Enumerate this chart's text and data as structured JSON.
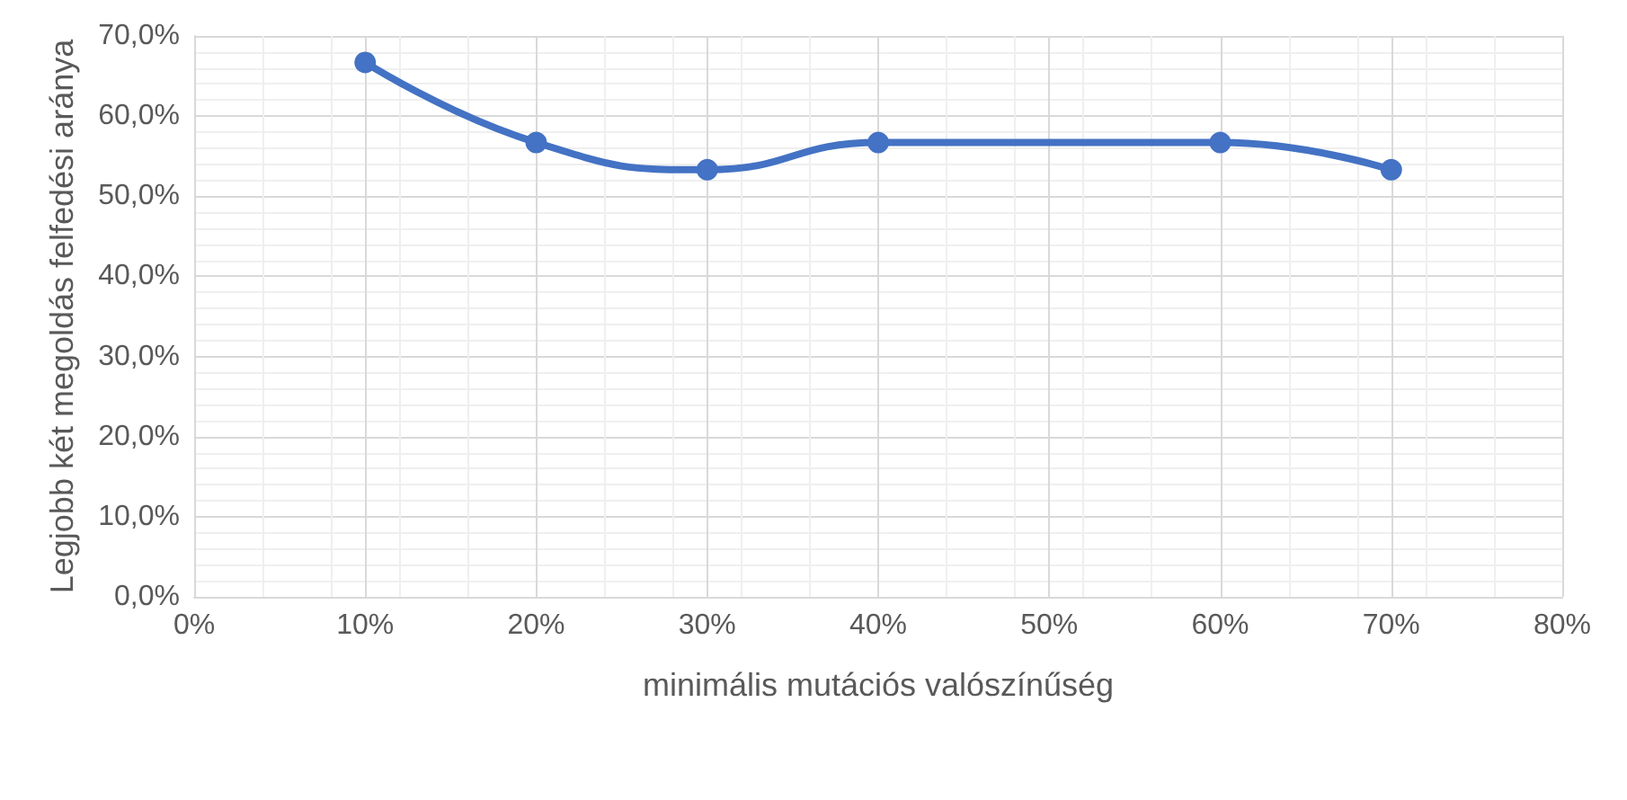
{
  "chart_data": {
    "type": "line",
    "xlabel": "minimális mutációs valószínűség",
    "ylabel": "Legjobb két megoldás felfedési aránya",
    "x": [
      10,
      20,
      30,
      40,
      60,
      70
    ],
    "series": [
      {
        "color": "#4472c4",
        "values": [
          66.7,
          56.7,
          53.3,
          56.7,
          56.7,
          53.3
        ]
      }
    ],
    "xlim": [
      0,
      80
    ],
    "xticks": [
      {
        "value": 0,
        "label": "0%"
      },
      {
        "value": 10,
        "label": "10%"
      },
      {
        "value": 20,
        "label": "20%"
      },
      {
        "value": 30,
        "label": "30%"
      },
      {
        "value": 40,
        "label": "40%"
      },
      {
        "value": 50,
        "label": "50%"
      },
      {
        "value": 60,
        "label": "60%"
      },
      {
        "value": 70,
        "label": "70%"
      },
      {
        "value": 80,
        "label": "80%"
      }
    ],
    "ylim": [
      0,
      70
    ],
    "yticks": [
      {
        "value": 0,
        "label": "0,0%"
      },
      {
        "value": 10,
        "label": "10,0%"
      },
      {
        "value": 20,
        "label": "20,0%"
      },
      {
        "value": 30,
        "label": "30,0%"
      },
      {
        "value": 40,
        "label": "40,0%"
      },
      {
        "value": 50,
        "label": "50,0%"
      },
      {
        "value": 60,
        "label": "60,0%"
      },
      {
        "value": 70,
        "label": "70,0%"
      }
    ],
    "grid": true,
    "marker": "circle",
    "line_style": "solid"
  }
}
